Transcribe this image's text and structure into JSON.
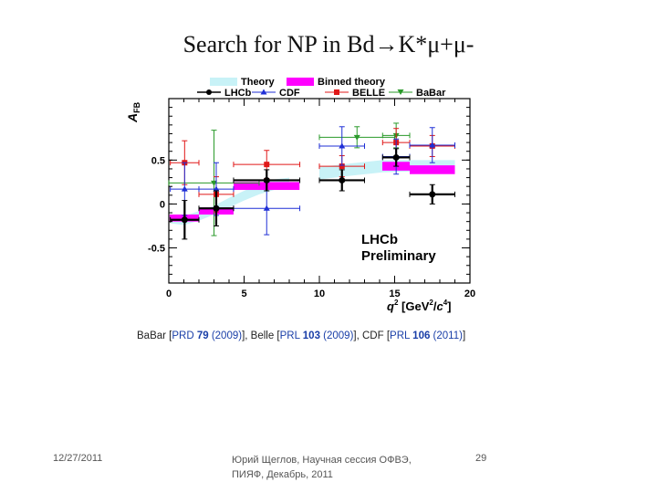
{
  "slide": {
    "title": "Search for NP in Bd→K*μ+μ-",
    "footer_date": "12/27/2011",
    "footer_text": "Юрий Щеглов, Научная сессия ОФВЭ, ПИЯФ, Декабрь, 2011",
    "footer_page": "29",
    "references": {
      "babar_prefix": "BaBar [",
      "babar_ref": "PRD ",
      "babar_vol": "79",
      "babar_year": " (2009)",
      "belle_prefix": "], Belle [",
      "belle_ref": "PRL ",
      "belle_vol": "103",
      "belle_year": " (2009)",
      "cdf_prefix": "], CDF [",
      "cdf_ref": "PRL ",
      "cdf_vol": "106",
      "cdf_year": " (2011)",
      "suffix": "]"
    }
  },
  "chart_data": {
    "type": "scatter",
    "xlabel": "q2 [GeV2/c4]",
    "xlabel_parts": {
      "q": "q",
      "q_sup": "2",
      "unit_open": " [GeV",
      "gev_sup": "2",
      "slash": "/",
      "c": "c",
      "c_sup": "4",
      "unit_close": "]"
    },
    "ylabel": "AFB",
    "ylabel_parts": {
      "a": "A",
      "sub": "FB"
    },
    "xlim": [
      0,
      20
    ],
    "ylim": [
      -0.9,
      1.2
    ],
    "x_ticks": [
      0,
      5,
      10,
      15,
      20
    ],
    "y_ticks": [
      -0.5,
      0,
      0.5
    ],
    "x_tick_labels": [
      "0",
      "5",
      "10",
      "15",
      "20"
    ],
    "y_tick_labels": [
      "-0.5",
      "0",
      "0.5"
    ],
    "annotation": {
      "line1": "LHCb",
      "line2": "Preliminary"
    },
    "legend": {
      "placement": "top",
      "entries": [
        "Theory",
        "Binned theory",
        "LHCb",
        "CDF",
        "BELLE",
        "BaBar"
      ]
    },
    "colors": {
      "theory": "#c8f2f7",
      "binned": "#ff00ff",
      "lhcb": "#000000",
      "cdf": "#1f2fd6",
      "belle": "#e01818",
      "babar": "#2a9a2a"
    },
    "theory_band": [
      {
        "x": 0.1,
        "ylo": -0.22,
        "yhi": -0.12
      },
      {
        "x": 1,
        "ylo": -0.24,
        "yhi": -0.14
      },
      {
        "x": 2,
        "ylo": -0.19,
        "yhi": -0.08
      },
      {
        "x": 3,
        "ylo": -0.12,
        "yhi": -0.02
      },
      {
        "x": 4,
        "ylo": -0.04,
        "yhi": 0.07
      },
      {
        "x": 5,
        "ylo": 0.04,
        "yhi": 0.15
      },
      {
        "x": 6,
        "ylo": 0.11,
        "yhi": 0.22
      },
      {
        "x": 7,
        "ylo": 0.16,
        "yhi": 0.28
      },
      {
        "x": 8,
        "ylo": 0.2,
        "yhi": 0.3
      }
    ],
    "theory_band_high": [
      {
        "x": 10,
        "ylo": 0.28,
        "yhi": 0.42
      },
      {
        "x": 12,
        "ylo": 0.32,
        "yhi": 0.46
      },
      {
        "x": 14.2,
        "ylo": 0.36,
        "yhi": 0.5
      },
      {
        "x": 16,
        "ylo": 0.37,
        "yhi": 0.5
      },
      {
        "x": 19,
        "ylo": 0.38,
        "yhi": 0.5
      }
    ],
    "binned_theory": [
      {
        "x1": 0.05,
        "x2": 2,
        "ylo": -0.2,
        "yhi": -0.12
      },
      {
        "x1": 2,
        "x2": 4.3,
        "ylo": -0.12,
        "yhi": -0.04
      },
      {
        "x1": 4.3,
        "x2": 8.68,
        "ylo": 0.16,
        "yhi": 0.25
      },
      {
        "x1": 14.18,
        "x2": 16,
        "ylo": 0.38,
        "yhi": 0.48
      },
      {
        "x1": 16,
        "x2": 19,
        "ylo": 0.34,
        "yhi": 0.44
      }
    ],
    "series": [
      {
        "name": "LHCb",
        "points": [
          {
            "x": 1.05,
            "y": -0.18,
            "xerr": 0.95,
            "yerr": 0.22
          },
          {
            "x": 3.15,
            "y": -0.05,
            "xerr": 1.15,
            "yerr": 0.2
          },
          {
            "x": 6.5,
            "y": 0.27,
            "xerr": 2.2,
            "yerr": 0.12
          },
          {
            "x": 11.5,
            "y": 0.27,
            "xerr": 1.5,
            "yerr": 0.12
          },
          {
            "x": 15.1,
            "y": 0.53,
            "xerr": 0.9,
            "yerr": 0.1
          },
          {
            "x": 17.5,
            "y": 0.11,
            "xerr": 1.5,
            "yerr": 0.11
          }
        ]
      },
      {
        "name": "CDF",
        "points": [
          {
            "x": 1.05,
            "y": 0.17,
            "xerr": 0.95,
            "yerr": 0.3
          },
          {
            "x": 3.15,
            "y": 0.17,
            "xerr": 1.15,
            "yerr": 0.3
          },
          {
            "x": 6.5,
            "y": -0.05,
            "xerr": 2.2,
            "yerr": 0.3
          },
          {
            "x": 11.5,
            "y": 0.66,
            "xerr": 1.5,
            "yerr": 0.22
          },
          {
            "x": 15.1,
            "y": 0.54,
            "xerr": 0.9,
            "yerr": 0.2
          },
          {
            "x": 17.5,
            "y": 0.67,
            "xerr": 1.5,
            "yerr": 0.2
          }
        ]
      },
      {
        "name": "BELLE",
        "points": [
          {
            "x": 1.05,
            "y": 0.47,
            "xerr": 0.95,
            "yerr": 0.25
          },
          {
            "x": 3.15,
            "y": 0.11,
            "xerr": 1.15,
            "yerr": 0.2
          },
          {
            "x": 6.5,
            "y": 0.45,
            "xerr": 2.2,
            "yerr": 0.16
          },
          {
            "x": 11.5,
            "y": 0.43,
            "xerr": 1.5,
            "yerr": 0.12
          },
          {
            "x": 15.1,
            "y": 0.7,
            "xerr": 0.9,
            "yerr": 0.16
          },
          {
            "x": 17.5,
            "y": 0.66,
            "xerr": 1.5,
            "yerr": 0.12
          }
        ]
      },
      {
        "name": "BaBar",
        "points": [
          {
            "x": 3,
            "y": 0.24,
            "xerr": 3,
            "yerr": 0.6
          },
          {
            "x": 12.5,
            "y": 0.76,
            "xerr": 2.5,
            "yerr": 0.12
          },
          {
            "x": 15.1,
            "y": 0.78,
            "xerr": 0.9,
            "yerr": 0.14
          }
        ]
      }
    ]
  }
}
